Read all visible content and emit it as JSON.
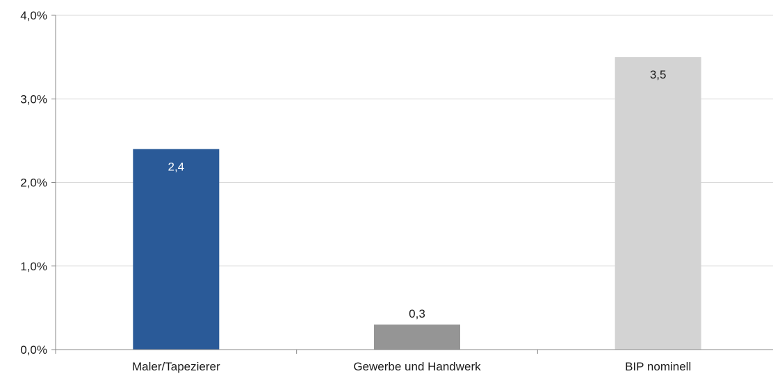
{
  "chart_data": {
    "type": "bar",
    "categories": [
      "Maler/Tapezierer",
      "Gewerbe und Handwerk",
      "BIP nominell"
    ],
    "values": [
      2.4,
      0.3,
      3.5
    ],
    "data_labels": [
      "2,4",
      "0,3",
      "3,5"
    ],
    "bar_colors": [
      "#2a5a98",
      "#959595",
      "#d3d3d3"
    ],
    "data_label_colors": [
      "#ffffff",
      "#1a1a1a",
      "#1a1a1a"
    ],
    "data_label_position": [
      "inside-top",
      "outside-top",
      "inside-top"
    ],
    "ylim": [
      0,
      4
    ],
    "yticks": [
      0,
      1,
      2,
      3,
      4
    ],
    "ytick_labels": [
      "0,0%",
      "1,0%",
      "2,0%",
      "3,0%",
      "4,0%"
    ],
    "grid": true,
    "grid_color": "#d9d9d9",
    "axis_color": "#888888",
    "legend": "none"
  }
}
